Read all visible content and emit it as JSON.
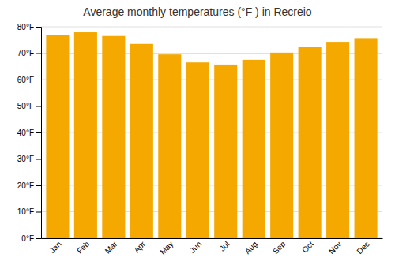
{
  "chart_data": {
    "type": "bar",
    "title": "Average monthly temperatures (°F ) in Recreio",
    "categories": [
      "Jan",
      "Feb",
      "Mar",
      "Apr",
      "May",
      "Jun",
      "Jul",
      "Aug",
      "Sep",
      "Oct",
      "Nov",
      "Dec"
    ],
    "values": [
      77.0,
      77.9,
      76.5,
      73.5,
      69.5,
      66.5,
      65.7,
      67.5,
      70.2,
      72.5,
      74.3,
      75.7
    ],
    "color": "#F5A800",
    "ylim": [
      0,
      80
    ],
    "yticks": [
      {
        "value": 0,
        "label": "0°F"
      },
      {
        "value": 10,
        "label": "10°F"
      },
      {
        "value": 20,
        "label": "20°F"
      },
      {
        "value": 30,
        "label": "30°F"
      },
      {
        "value": 40,
        "label": "40°F"
      },
      {
        "value": 50,
        "label": "50°F"
      },
      {
        "value": 60,
        "label": "60°F"
      },
      {
        "value": 70,
        "label": "70°F"
      },
      {
        "value": 80,
        "label": "80°F"
      }
    ],
    "grid": true
  }
}
